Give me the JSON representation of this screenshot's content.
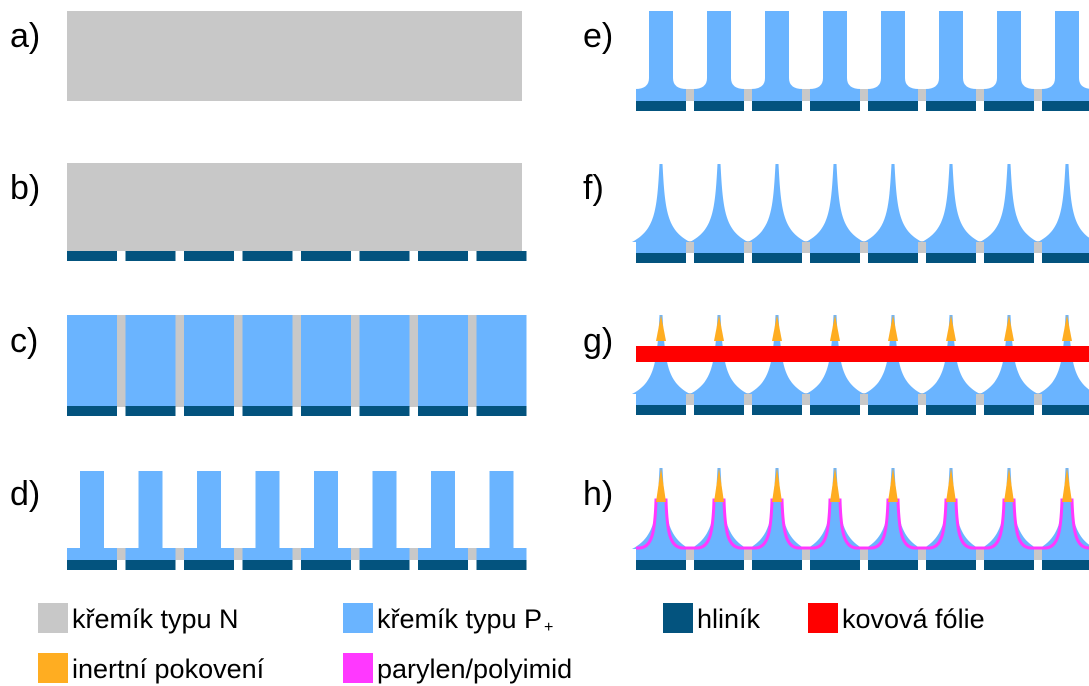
{
  "steps": [
    {
      "id": "a",
      "label": "a)"
    },
    {
      "id": "b",
      "label": "b)"
    },
    {
      "id": "c",
      "label": "c)"
    },
    {
      "id": "d",
      "label": "d)"
    },
    {
      "id": "e",
      "label": "e)"
    },
    {
      "id": "f",
      "label": "f)"
    },
    {
      "id": "g",
      "label": "g)"
    },
    {
      "id": "h",
      "label": "h)"
    }
  ],
  "legend": [
    {
      "key": "n_silicon",
      "label": "křemík typu N",
      "color": "#c8c8c8"
    },
    {
      "key": "p_silicon",
      "label": "křemík typu P",
      "suffix": "+",
      "color": "#6ab4ff"
    },
    {
      "key": "aluminium",
      "label": "hliník",
      "color": "#03537e"
    },
    {
      "key": "metal_foil",
      "label": "kovová fólie",
      "color": "#ff0000"
    },
    {
      "key": "inert_plating",
      "label": "inertní pokovení",
      "color": "#ffad21"
    },
    {
      "key": "parylene",
      "label": "parylen/polyimid",
      "color": "#ff38ff"
    }
  ],
  "electrode_count": 8
}
